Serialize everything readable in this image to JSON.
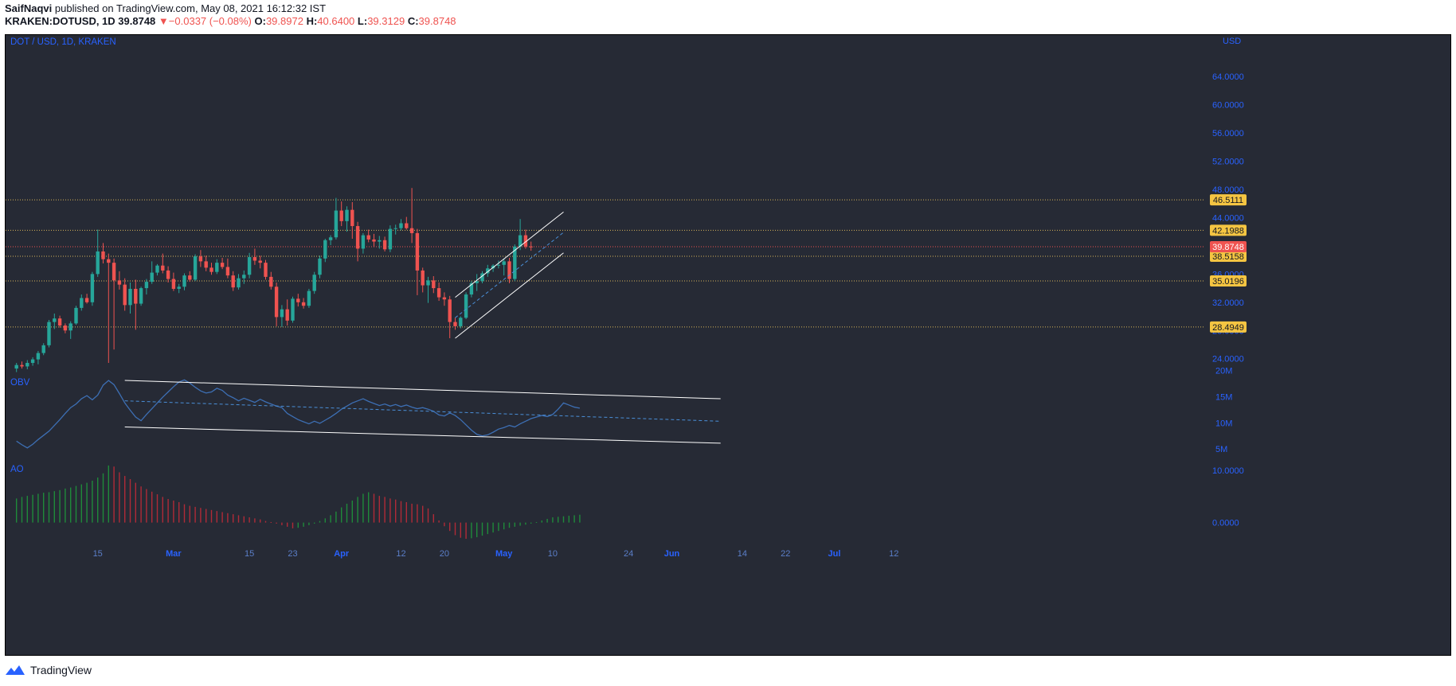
{
  "header": {
    "author": "SaifNaqvi",
    "published_text": "published on TradingView.com, May 08, 2021 16:12:32 IST",
    "symbol": "KRAKEN:DOTUSD, 1D",
    "last": "39.8748",
    "change": "−0.0337 (−0.08%)",
    "o_label": "O:",
    "o": "39.8972",
    "h_label": "H:",
    "h": "40.6400",
    "l_label": "L:",
    "l": "39.3129",
    "c_label": "C:",
    "c": "39.8748"
  },
  "footer": {
    "brand": "TradingView"
  },
  "colors": {
    "background": "#262a35",
    "up": "#26a69a",
    "down": "#ef5350",
    "axis_text": "#2962ff",
    "grid_level": "#d6b45a",
    "current": "#ef5350",
    "obv_line": "#3d6fb4",
    "channel": "#ffffff"
  },
  "chart_data": [
    {
      "type": "candlestick",
      "title": "DOT / USD, 1D, KRAKEN",
      "y_unit": "USD",
      "ylim": [
        22.5,
        66.5
      ],
      "y_ticks": [
        "24.0000",
        "28.0000",
        "32.0000",
        "36.0000",
        "44.0000",
        "48.0000",
        "52.0000",
        "56.0000",
        "60.0000",
        "64.0000"
      ],
      "x_ticks": [
        {
          "label": "15",
          "day": 15,
          "month_label": false
        },
        {
          "label": "Mar",
          "day": 29,
          "month_label": true
        },
        {
          "label": "15",
          "day": 43,
          "month_label": false
        },
        {
          "label": "23",
          "day": 51,
          "month_label": false
        },
        {
          "label": "Apr",
          "day": 60,
          "month_label": true
        },
        {
          "label": "12",
          "day": 71,
          "month_label": false
        },
        {
          "label": "20",
          "day": 79,
          "month_label": false
        },
        {
          "label": "May",
          "day": 90,
          "month_label": true
        },
        {
          "label": "10",
          "day": 99,
          "month_label": false
        },
        {
          "label": "24",
          "day": 113,
          "month_label": false
        },
        {
          "label": "Jun",
          "day": 121,
          "month_label": true
        },
        {
          "label": "14",
          "day": 134,
          "month_label": false
        },
        {
          "label": "22",
          "day": 142,
          "month_label": false
        },
        {
          "label": "Jul",
          "day": 151,
          "month_label": true
        },
        {
          "label": "12",
          "day": 162,
          "month_label": false
        }
      ],
      "levels": [
        {
          "value": 46.5111,
          "label": "46.5111"
        },
        {
          "value": 42.1988,
          "label": "42.1988"
        },
        {
          "value": 38.5158,
          "label": "38.5158"
        },
        {
          "value": 35.0196,
          "label": "35.0196"
        },
        {
          "value": 28.4949,
          "label": "28.4949"
        }
      ],
      "current_price": {
        "value": 39.8748,
        "label": "39.8748"
      },
      "candles": [
        [
          22.6,
          23.4,
          22.1,
          23.1
        ],
        [
          23.1,
          23.6,
          22.6,
          22.9
        ],
        [
          22.9,
          23.8,
          22.5,
          23.4
        ],
        [
          23.4,
          24.2,
          23.0,
          23.9
        ],
        [
          23.9,
          25.1,
          23.2,
          24.8
        ],
        [
          24.8,
          26.2,
          24.5,
          25.9
        ],
        [
          25.9,
          29.5,
          25.6,
          29.2
        ],
        [
          29.2,
          30.4,
          28.2,
          29.7
        ],
        [
          29.7,
          30.1,
          28.4,
          28.7
        ],
        [
          28.7,
          29.0,
          27.6,
          28.0
        ],
        [
          28.0,
          29.3,
          26.8,
          29.0
        ],
        [
          29.0,
          31.5,
          28.8,
          31.2
        ],
        [
          31.2,
          33.1,
          30.8,
          32.6
        ],
        [
          32.6,
          33.2,
          31.8,
          32.0
        ],
        [
          32.0,
          36.3,
          31.5,
          36.0
        ],
        [
          36.0,
          42.3,
          35.6,
          39.2
        ],
        [
          39.2,
          40.4,
          37.5,
          38.1
        ],
        [
          38.1,
          38.9,
          23.4,
          37.6
        ],
        [
          37.6,
          38.2,
          25.3,
          35.1
        ],
        [
          35.1,
          36.4,
          33.8,
          34.5
        ],
        [
          34.5,
          35.4,
          30.8,
          31.6
        ],
        [
          31.6,
          34.8,
          30.4,
          33.9
        ],
        [
          33.9,
          35.2,
          28.1,
          31.8
        ],
        [
          31.8,
          34.2,
          31.5,
          34.0
        ],
        [
          34.0,
          35.3,
          33.1,
          34.9
        ],
        [
          34.9,
          37.8,
          34.6,
          36.2
        ],
        [
          36.2,
          37.4,
          35.8,
          37.2
        ],
        [
          37.2,
          38.9,
          36.1,
          36.5
        ],
        [
          36.5,
          37.1,
          34.8,
          35.3
        ],
        [
          35.3,
          36.2,
          33.6,
          33.9
        ],
        [
          33.9,
          34.6,
          33.3,
          34.2
        ],
        [
          34.2,
          36.1,
          33.7,
          35.8
        ],
        [
          35.8,
          36.4,
          34.9,
          35.2
        ],
        [
          35.2,
          38.8,
          35.0,
          38.5
        ],
        [
          38.5,
          39.4,
          37.0,
          37.8
        ],
        [
          37.8,
          38.6,
          36.4,
          36.9
        ],
        [
          36.9,
          37.6,
          35.9,
          36.3
        ],
        [
          36.3,
          38.1,
          36.0,
          37.6
        ],
        [
          37.6,
          38.3,
          36.7,
          37.0
        ],
        [
          37.0,
          38.2,
          35.4,
          35.8
        ],
        [
          35.8,
          36.4,
          33.6,
          34.1
        ],
        [
          34.1,
          36.0,
          33.8,
          35.4
        ],
        [
          35.4,
          36.5,
          34.6,
          35.9
        ],
        [
          35.9,
          39.0,
          35.4,
          38.4
        ],
        [
          38.4,
          39.6,
          37.3,
          37.9
        ],
        [
          37.9,
          38.6,
          36.8,
          37.6
        ],
        [
          37.6,
          38.0,
          35.2,
          35.6
        ],
        [
          35.6,
          36.3,
          33.8,
          34.2
        ],
        [
          34.2,
          34.8,
          28.6,
          29.9
        ],
        [
          29.9,
          31.6,
          28.5,
          31.0
        ],
        [
          31.0,
          32.4,
          28.7,
          29.4
        ],
        [
          29.4,
          32.8,
          29.1,
          32.5
        ],
        [
          32.5,
          33.2,
          31.4,
          32.0
        ],
        [
          32.0,
          32.6,
          31.1,
          31.5
        ],
        [
          31.5,
          33.9,
          31.2,
          33.6
        ],
        [
          33.6,
          36.3,
          33.2,
          35.9
        ],
        [
          35.9,
          38.6,
          35.4,
          38.2
        ],
        [
          38.2,
          41.0,
          37.7,
          40.8
        ],
        [
          40.8,
          41.5,
          40.1,
          41.2
        ],
        [
          41.2,
          46.8,
          40.9,
          45.0
        ],
        [
          45.0,
          46.3,
          42.8,
          43.5
        ],
        [
          43.5,
          45.6,
          42.0,
          45.1
        ],
        [
          45.1,
          46.2,
          41.0,
          42.8
        ],
        [
          42.8,
          43.4,
          37.8,
          39.6
        ],
        [
          39.6,
          41.8,
          38.9,
          41.5
        ],
        [
          41.5,
          42.3,
          40.5,
          40.9
        ],
        [
          40.9,
          41.7,
          39.8,
          40.6
        ],
        [
          40.6,
          41.4,
          39.6,
          40.8
        ],
        [
          40.8,
          41.3,
          39.2,
          39.5
        ],
        [
          39.5,
          42.9,
          39.1,
          42.4
        ],
        [
          42.4,
          43.0,
          41.6,
          42.5
        ],
        [
          42.5,
          43.8,
          42.2,
          43.2
        ],
        [
          43.2,
          44.1,
          42.3,
          42.5
        ],
        [
          42.5,
          48.2,
          40.4,
          41.8
        ],
        [
          41.8,
          42.4,
          33.0,
          36.5
        ],
        [
          36.5,
          36.9,
          33.4,
          34.4
        ],
        [
          34.4,
          35.6,
          31.9,
          35.1
        ],
        [
          35.1,
          35.7,
          33.3,
          34.0
        ],
        [
          34.0,
          34.8,
          32.2,
          32.7
        ],
        [
          32.7,
          33.4,
          31.5,
          32.4
        ],
        [
          32.4,
          32.9,
          26.9,
          29.2
        ],
        [
          29.2,
          29.8,
          28.1,
          28.6
        ],
        [
          28.6,
          30.0,
          28.3,
          29.8
        ],
        [
          29.8,
          33.4,
          29.6,
          33.1
        ],
        [
          33.1,
          35.0,
          32.7,
          34.7
        ],
        [
          34.7,
          36.0,
          33.6,
          35.0
        ],
        [
          35.0,
          36.4,
          34.7,
          36.1
        ],
        [
          36.1,
          37.3,
          35.6,
          36.8
        ],
        [
          36.8,
          37.4,
          36.3,
          37.2
        ],
        [
          37.2,
          37.9,
          36.8,
          37.3
        ],
        [
          37.3,
          38.2,
          35.8,
          37.8
        ],
        [
          37.8,
          38.3,
          34.7,
          35.3
        ],
        [
          35.3,
          40.2,
          35.0,
          39.9
        ],
        [
          39.9,
          43.8,
          39.4,
          41.5
        ],
        [
          41.5,
          42.3,
          39.6,
          39.9
        ],
        [
          39.9,
          40.6,
          39.3,
          39.8748
        ]
      ]
    },
    {
      "type": "line",
      "title": "OBV",
      "y_ticks": [
        "20M",
        "15M",
        "10M",
        "5M"
      ],
      "ylim": [
        3.5,
        21
      ],
      "values": [
        6.5,
        5.8,
        5.2,
        5.9,
        6.8,
        7.6,
        8.4,
        9.5,
        10.6,
        11.8,
        12.9,
        13.6,
        14.6,
        15.2,
        14.4,
        15.3,
        17.2,
        18.1,
        17.3,
        15.6,
        13.8,
        12.4,
        11.1,
        10.4,
        11.6,
        12.7,
        13.8,
        14.9,
        15.9,
        16.9,
        17.8,
        18.2,
        17.6,
        16.8,
        16.1,
        15.7,
        15.9,
        16.6,
        16.2,
        15.3,
        14.8,
        14.2,
        14.7,
        14.3,
        13.9,
        14.5,
        14.0,
        13.6,
        13.2,
        12.9,
        11.8,
        11.2,
        10.6,
        10.2,
        9.8,
        10.3,
        9.9,
        10.5,
        11.1,
        11.8,
        12.6,
        13.2,
        13.8,
        14.2,
        14.6,
        14.1,
        13.7,
        13.3,
        13.6,
        13.2,
        13.5,
        13.1,
        13.4,
        13.0,
        12.7,
        12.9,
        12.6,
        12.2,
        11.5,
        11.3,
        11.9,
        11.4,
        10.6,
        9.6,
        8.6,
        7.8,
        7.5,
        7.7,
        8.2,
        8.8,
        9.1,
        9.5,
        9.2,
        9.8,
        10.3,
        10.8,
        11.1,
        11.4,
        11.2,
        11.6,
        12.6,
        13.8,
        13.4,
        13.0,
        12.8
      ]
    },
    {
      "type": "bar",
      "title": "AO",
      "y_ticks": [
        "10.0000",
        "0.0000"
      ],
      "ylim": [
        -3.4,
        11.8
      ],
      "values": [
        4.6,
        4.9,
        5.1,
        5.3,
        5.5,
        5.7,
        5.8,
        6.0,
        6.2,
        6.5,
        6.7,
        7.0,
        7.3,
        7.6,
        8.0,
        8.6,
        9.4,
        10.9,
        10.7,
        9.6,
        8.9,
        8.3,
        7.6,
        6.9,
        6.4,
        5.9,
        5.4,
        4.9,
        4.5,
        4.2,
        3.9,
        3.5,
        3.2,
        3.0,
        2.8,
        2.6,
        2.4,
        2.2,
        2.0,
        1.8,
        1.6,
        1.4,
        1.2,
        1.0,
        0.8,
        0.6,
        0.3,
        0.1,
        -0.2,
        -0.5,
        -0.8,
        -1.1,
        -1.0,
        -0.8,
        -0.5,
        -0.2,
        0.3,
        0.8,
        1.4,
        2.1,
        2.9,
        3.6,
        4.2,
        4.9,
        5.5,
        5.8,
        5.5,
        5.1,
        4.9,
        4.6,
        4.4,
        4.1,
        3.9,
        3.6,
        3.5,
        3.2,
        2.7,
        1.6,
        0.4,
        -0.7,
        -1.6,
        -2.4,
        -2.9,
        -3.1,
        -3.0,
        -2.8,
        -2.5,
        -2.2,
        -1.9,
        -1.6,
        -1.3,
        -1.0,
        -0.8,
        -0.6,
        -0.4,
        -0.2,
        0.1,
        0.4,
        0.7,
        1.0,
        1.1,
        1.2,
        1.3,
        1.4,
        1.5
      ]
    }
  ]
}
